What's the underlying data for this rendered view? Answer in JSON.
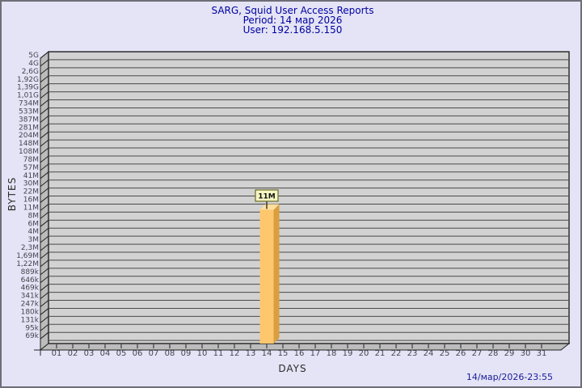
{
  "header": {
    "title": "SARG, Squid User Access Reports",
    "period": "Period: 14 мар 2026",
    "user": "User: 192.168.5.150"
  },
  "footer": {
    "timestamp": "14/мар/2026-23:55"
  },
  "chart_data": {
    "type": "bar",
    "title": "SARG, Squid User Access Reports",
    "subtitle": [
      "Period: 14 мар 2026",
      "User: 192.168.5.150"
    ],
    "xlabel": "DAYS",
    "ylabel": "BYTES",
    "y_axis_type": "custom-ticks",
    "y_tick_labels": [
      "5G",
      "4G",
      "2,6G",
      "1,92G",
      "1,39G",
      "1,01G",
      "734M",
      "533M",
      "387M",
      "281M",
      "204M",
      "148M",
      "108M",
      "78M",
      "57M",
      "41M",
      "30M",
      "22M",
      "16M",
      "11M",
      "8M",
      "6M",
      "4M",
      "3M",
      "2,3M",
      "1,69M",
      "1,22M",
      "889k",
      "646k",
      "469k",
      "341k",
      "247k",
      "180k",
      "131k",
      "95k",
      "69k"
    ],
    "categories": [
      "01",
      "02",
      "03",
      "04",
      "05",
      "06",
      "07",
      "08",
      "09",
      "10",
      "11",
      "12",
      "13",
      "14",
      "15",
      "16",
      "17",
      "18",
      "19",
      "20",
      "21",
      "22",
      "23",
      "24",
      "25",
      "26",
      "27",
      "28",
      "29",
      "30",
      "31"
    ],
    "values": [
      0,
      0,
      0,
      0,
      0,
      0,
      0,
      0,
      0,
      0,
      0,
      0,
      0,
      11000000,
      0,
      0,
      0,
      0,
      0,
      0,
      0,
      0,
      0,
      0,
      0,
      0,
      0,
      0,
      0,
      0,
      0
    ],
    "bars": [
      {
        "day": "14",
        "value": 11000000,
        "label": "11M"
      }
    ],
    "grid": true,
    "legend": "none",
    "colors": {
      "background": "#e4e4f6",
      "plot_bg": "#d2d2d2",
      "wall": "#bcbcbc",
      "grid": "#4a4a4a",
      "frame": "#222222",
      "bar_front": "#fec76d",
      "bar_side": "#d99e3e",
      "bar_top": "#ffdf9d",
      "label_box_bg": "#f6f6c3",
      "label_box_border": "#6a6a25",
      "title_color": "#0000a0",
      "axis_text": "#44444e"
    }
  }
}
